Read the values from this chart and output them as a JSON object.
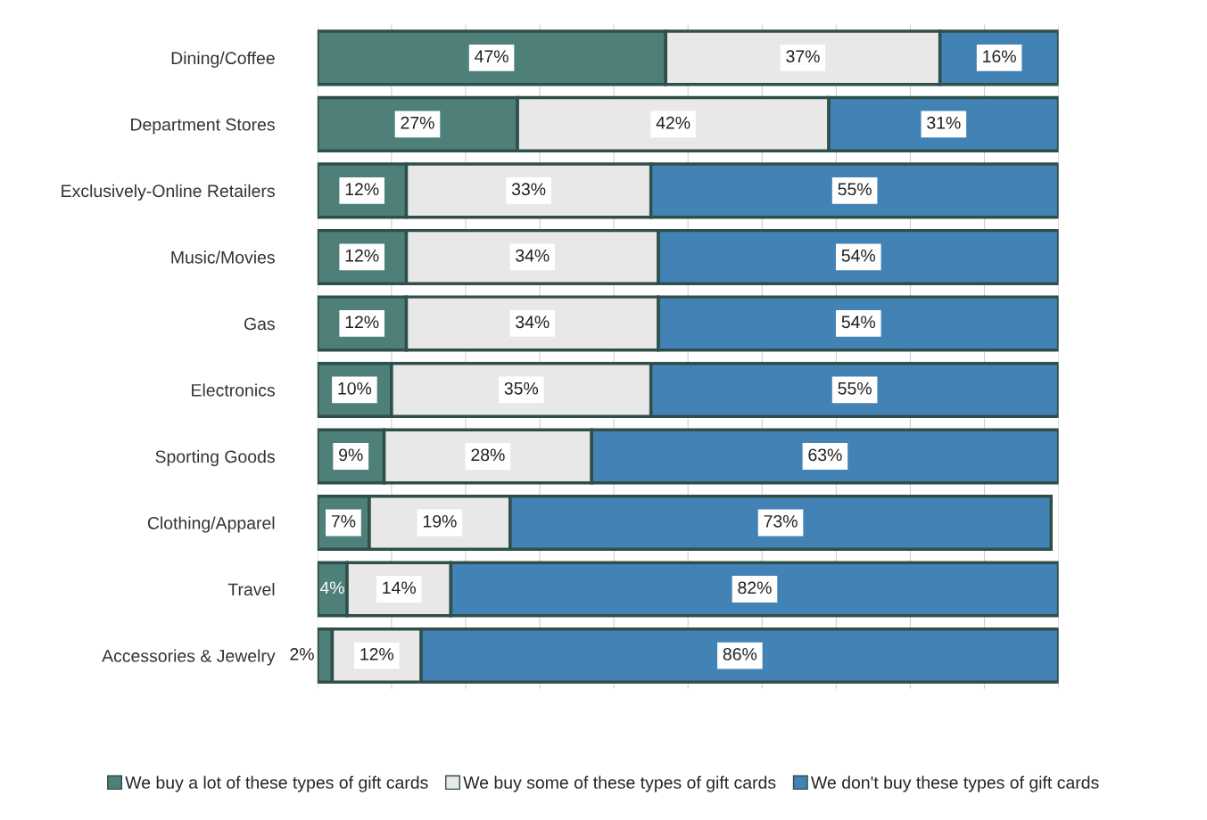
{
  "chart_data": {
    "type": "bar",
    "orientation": "horizontal",
    "stacked": true,
    "categories": [
      "Dining/Coffee",
      "Department Stores",
      "Exclusively-Online Retailers",
      "Music/Movies",
      "Gas",
      "Electronics",
      "Sporting Goods",
      "Clothing/Apparel",
      "Travel",
      "Accessories & Jewelry"
    ],
    "series": [
      {
        "name": "We buy a lot of these types of gift cards",
        "color": "#4e7f78",
        "values": [
          47,
          27,
          12,
          12,
          12,
          10,
          9,
          7,
          4,
          2
        ],
        "value_labels": [
          "47%",
          "27%",
          "12%",
          "12%",
          "12%",
          "10%",
          "9%",
          "7%",
          "4%",
          "2%"
        ]
      },
      {
        "name": "We buy some of these types of gift cards",
        "color": "#e8e8e8",
        "values": [
          37,
          42,
          33,
          34,
          34,
          35,
          28,
          19,
          14,
          12
        ],
        "value_labels": [
          "37%",
          "42%",
          "33%",
          "34%",
          "34%",
          "35%",
          "28%",
          "19%",
          "14%",
          "12%"
        ]
      },
      {
        "name": "We don't buy these types of gift cards",
        "color": "#4282b4",
        "values": [
          16,
          31,
          55,
          54,
          54,
          55,
          63,
          73,
          82,
          86
        ],
        "value_labels": [
          "16%",
          "31%",
          "55%",
          "54%",
          "54%",
          "55%",
          "63%",
          "73%",
          "82%",
          "86%"
        ]
      }
    ],
    "xlim": [
      0,
      100
    ],
    "xticks": [
      {
        "value": 0,
        "label": null
      },
      {
        "value": 10,
        "label": null
      },
      {
        "value": 20,
        "label": null
      },
      {
        "value": 30,
        "label": null
      },
      {
        "value": 40,
        "label": null
      },
      {
        "value": 50,
        "label": null
      },
      {
        "value": 60,
        "label": null
      },
      {
        "value": 70,
        "label": null
      },
      {
        "value": 80,
        "label": null
      },
      {
        "value": 90,
        "label": null
      },
      {
        "value": 100,
        "label": null
      }
    ],
    "grid": "x",
    "legend": "bottom"
  }
}
